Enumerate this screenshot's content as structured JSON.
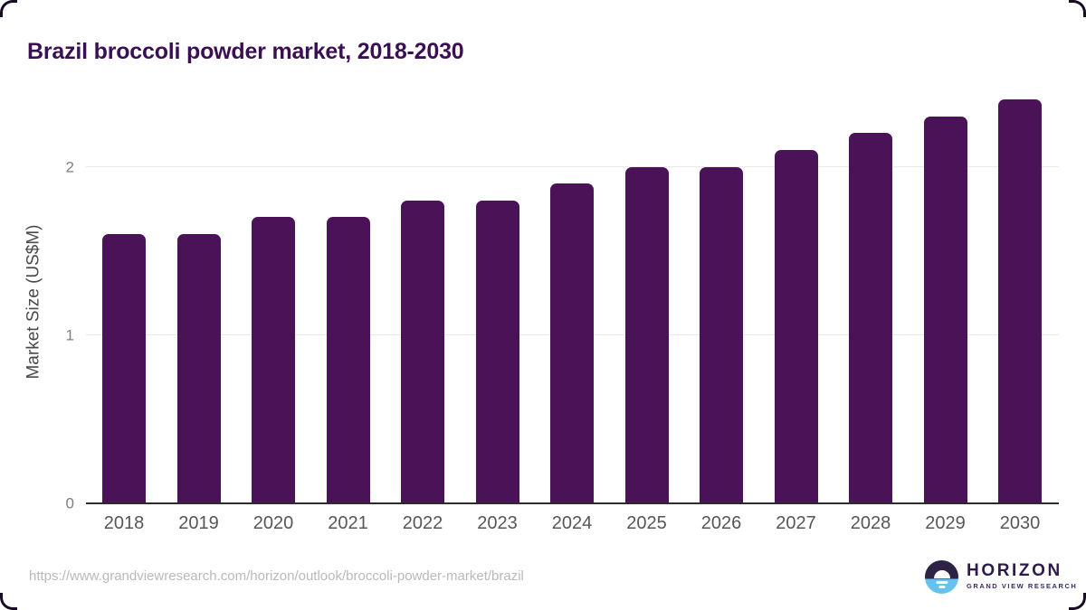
{
  "page": {
    "title": "Brazil broccoli powder market, 2018-2030",
    "source_url": "https://www.grandviewresearch.com/horizon/outlook/broccoli-powder-market/brazil"
  },
  "chart_data": {
    "type": "bar",
    "title": "Brazil broccoli powder market, 2018-2030",
    "categories": [
      "2018",
      "2019",
      "2020",
      "2021",
      "2022",
      "2023",
      "2024",
      "2025",
      "2026",
      "2027",
      "2028",
      "2029",
      "2030"
    ],
    "values": [
      1.6,
      1.6,
      1.7,
      1.7,
      1.8,
      1.8,
      1.9,
      2.0,
      2.0,
      2.1,
      2.2,
      2.3,
      2.4
    ],
    "xlabel": "",
    "ylabel": "Market Size (US$M)",
    "yticks": [
      0,
      1,
      2
    ],
    "ylim": [
      0,
      2.4
    ],
    "grid": "horizontal",
    "legend": "none",
    "bar_color": "#4a1257"
  },
  "branding": {
    "logo_text": "HORIZON",
    "logo_subtext": "GRAND VIEW RESEARCH",
    "logo_icon": "horizon-sunrise-icon"
  },
  "colors": {
    "bar": "#4a1257",
    "title_text": "#3b1053",
    "axis_line": "#2b2b2b",
    "gridline": "#e8e8e8",
    "y_tick_label": "#808080",
    "x_tick_label": "#565656",
    "y_axis_title": "#4a4a4a",
    "url_text": "#b9b9b9",
    "logo_dark": "#2d1b4e",
    "logo_blue": "#63c3ee",
    "background": "#ffffff"
  }
}
